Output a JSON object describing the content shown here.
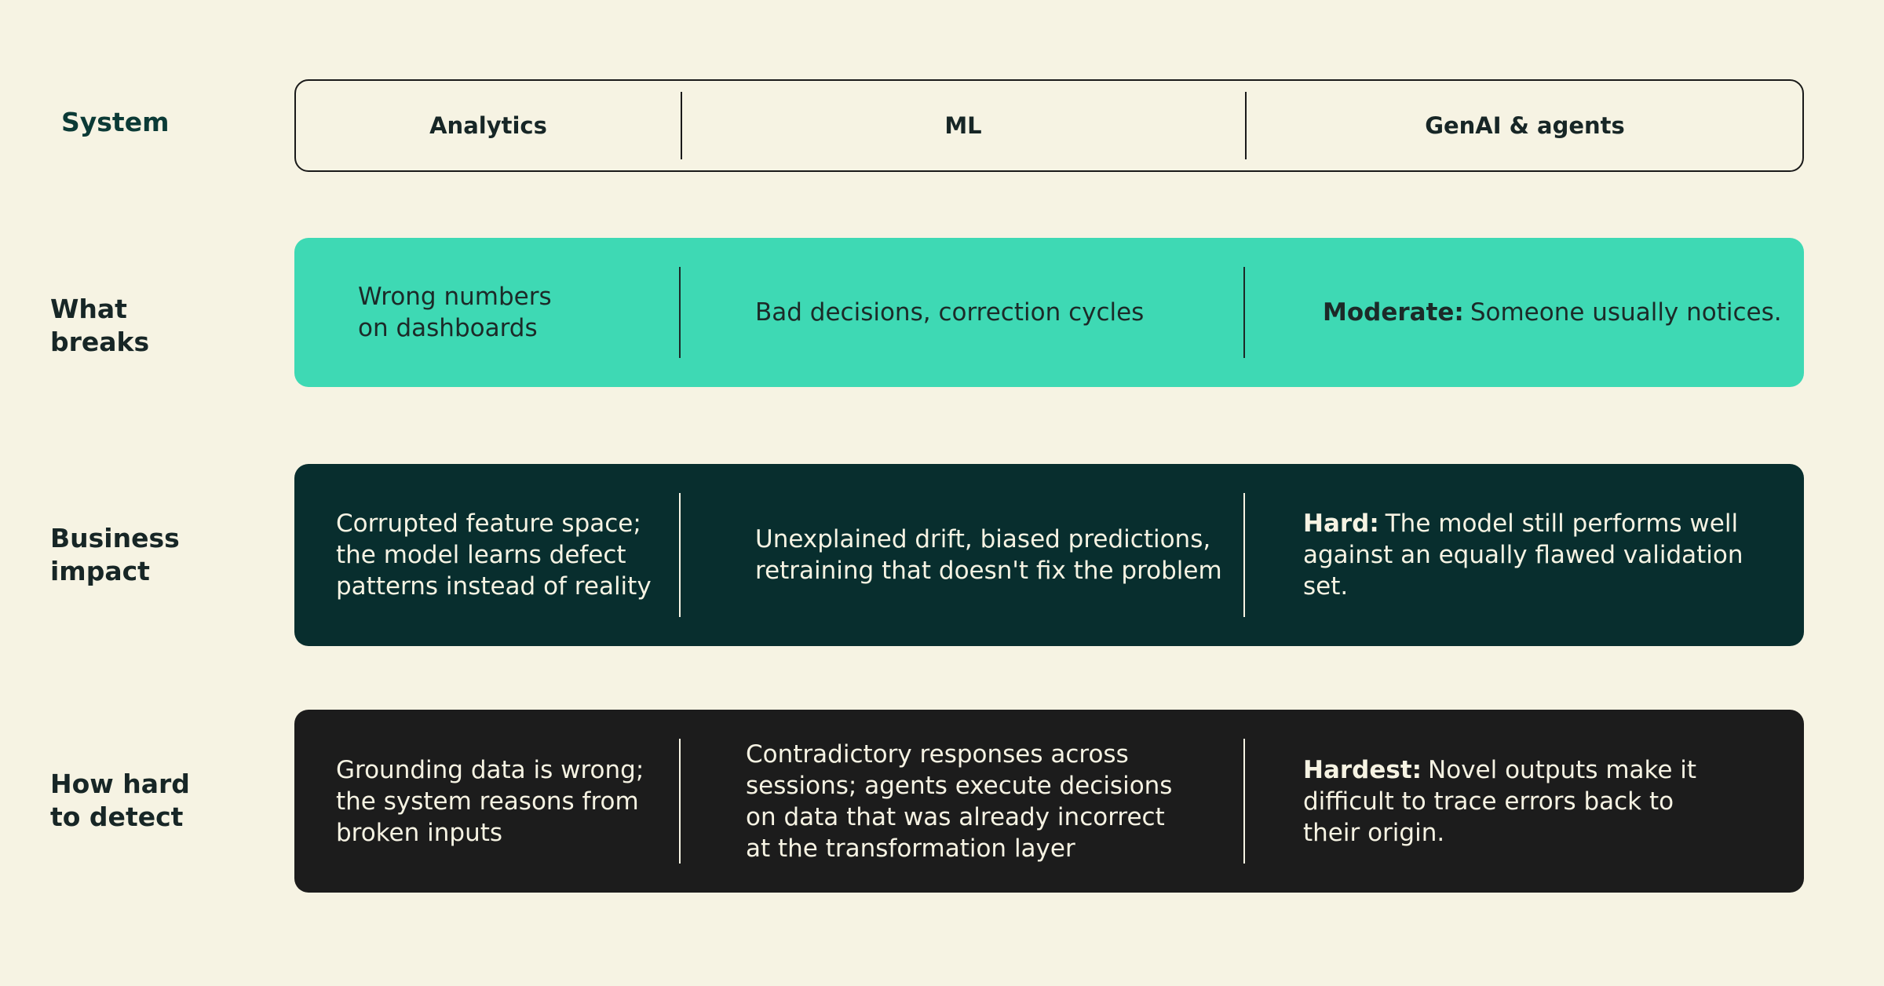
{
  "header": {
    "label": "System",
    "columns": [
      "Analytics",
      "ML",
      "GenAI & agents"
    ]
  },
  "rows": [
    {
      "label": "What breaks",
      "cells": [
        {
          "text": "Wrong numbers on dashboards"
        },
        {
          "text": "Bad decisions, correction cycles"
        },
        {
          "lead": "Moderate:",
          "text": "Someone usually notices."
        }
      ]
    },
    {
      "label": "Business impact",
      "cells": [
        {
          "text": "Corrupted feature space; the model learns defect patterns instead of reality"
        },
        {
          "text": "Unexplained drift, biased predictions, retraining that doesn't fix the problem"
        },
        {
          "lead": "Hard:",
          "text": "The model still performs well against an equally flawed validation set."
        }
      ]
    },
    {
      "label": "How hard to detect",
      "cells": [
        {
          "text": "Grounding data is wrong; the system reasons from broken inputs"
        },
        {
          "text": "Contradictory responses across sessions; agents execute decisions on data that was already incorrect at the transformation layer"
        },
        {
          "lead": "Hardest:",
          "text": "Novel outputs make it difficult to trace errors back to their origin."
        }
      ]
    }
  ]
}
